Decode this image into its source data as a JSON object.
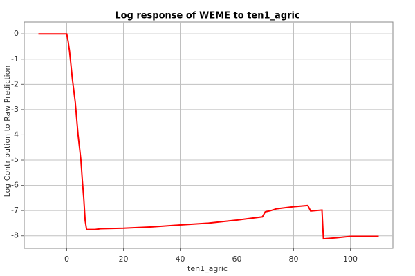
{
  "chart_data": {
    "type": "line",
    "title": "Log response of WEME to ten1_agric",
    "x_label": "ten1_agric",
    "y_label": "Log Contribution to Raw Prediction",
    "x": [
      -10,
      0,
      0.5,
      1,
      2,
      3,
      4,
      5,
      5.5,
      6,
      6.5,
      7,
      10,
      12,
      20,
      30,
      40,
      50,
      60,
      69,
      70,
      72,
      74,
      80,
      85,
      86,
      90,
      90.5,
      95,
      100,
      110
    ],
    "values": [
      0,
      0,
      -0.3,
      -0.7,
      -1.8,
      -2.7,
      -4.0,
      -5.0,
      -5.8,
      -6.5,
      -7.4,
      -7.75,
      -7.75,
      -7.72,
      -7.7,
      -7.65,
      -7.57,
      -7.5,
      -7.38,
      -7.25,
      -7.05,
      -7.0,
      -6.93,
      -6.85,
      -6.8,
      -7.02,
      -6.98,
      -8.12,
      -8.08,
      -8.02,
      -8.02
    ],
    "color": "#ff0000",
    "xlim": [
      -15,
      115
    ],
    "xticks": [
      0,
      20,
      40,
      60,
      80,
      100
    ],
    "ylim": [
      -8.5,
      0.47
    ],
    "yticks": [
      0,
      -1,
      -2,
      -3,
      -4,
      -5,
      -6,
      -7,
      -8
    ],
    "grid": true
  }
}
